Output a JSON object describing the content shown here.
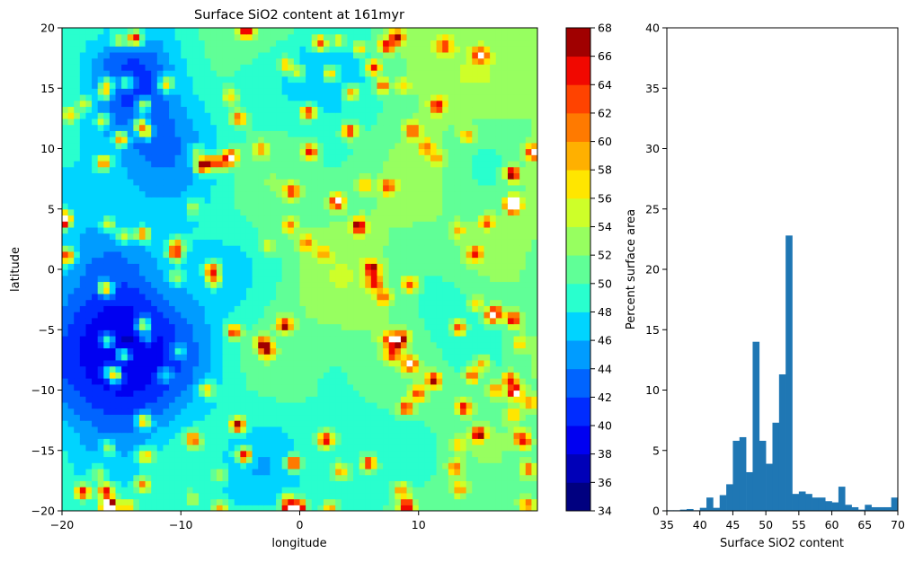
{
  "chart_data": [
    {
      "type": "heatmap",
      "title": "Surface SiO2 content at 161myr",
      "xlabel": "longitude",
      "ylabel": "latitude",
      "xlim": [
        -20,
        20
      ],
      "ylim": [
        -20,
        20
      ],
      "xticks": [
        -20,
        -10,
        0,
        10
      ],
      "xtick_labels": [
        "−20",
        "−10",
        "0",
        "10"
      ],
      "yticks": [
        -20,
        -15,
        -10,
        -5,
        0,
        5,
        10,
        15,
        20
      ],
      "ytick_labels": [
        "−20",
        "−15",
        "−10",
        "−5",
        "0",
        "5",
        "10",
        "15",
        "20"
      ],
      "colorbar": {
        "levels": [
          34,
          36,
          38,
          40,
          42,
          44,
          46,
          48,
          50,
          52,
          54,
          56,
          58,
          60,
          62,
          64,
          66,
          68
        ],
        "tick_labels": [
          "34",
          "36",
          "38",
          "40",
          "42",
          "44",
          "46",
          "48",
          "50",
          "52",
          "54",
          "56",
          "58",
          "60",
          "62",
          "64",
          "66",
          "68"
        ],
        "colors": [
          "#000080",
          "#0000b8",
          "#0000f1",
          "#002cff",
          "#0064ff",
          "#009cff",
          "#00d4ff",
          "#29ffce",
          "#60ff97",
          "#97ff60",
          "#ceff29",
          "#ffe600",
          "#ffb000",
          "#ff7a00",
          "#ff4300",
          "#f10800",
          "#a00000"
        ]
      }
    },
    {
      "type": "bar",
      "xlabel": "Surface SiO2 content",
      "ylabel": "Percent surface area",
      "xlim": [
        35,
        70
      ],
      "ylim": [
        0,
        40
      ],
      "bin_width": 1,
      "bin_starts": [
        35,
        36,
        37,
        38,
        39,
        40,
        41,
        42,
        43,
        44,
        45,
        46,
        47,
        48,
        49,
        50,
        51,
        52,
        53,
        54,
        55,
        56,
        57,
        58,
        59,
        60,
        61,
        62,
        63,
        64,
        65,
        66,
        67,
        68,
        69
      ],
      "values": [
        0.05,
        0.05,
        0.1,
        0.15,
        0.05,
        0.25,
        1.1,
        0.25,
        1.3,
        2.2,
        5.8,
        6.1,
        3.2,
        14.0,
        5.8,
        3.9,
        7.3,
        11.3,
        22.8,
        1.4,
        1.6,
        1.4,
        1.1,
        1.1,
        0.8,
        0.7,
        2.0,
        0.5,
        0.3,
        0.1,
        0.5,
        0.3,
        0.3,
        0.3,
        1.1
      ],
      "xticks": [
        35,
        40,
        45,
        50,
        55,
        60,
        65,
        70
      ],
      "xtick_labels": [
        "35",
        "40",
        "45",
        "50",
        "55",
        "60",
        "65",
        "70"
      ],
      "yticks": [
        0,
        5,
        10,
        15,
        20,
        25,
        30,
        35,
        40
      ],
      "ytick_labels": [
        "0",
        "5",
        "10",
        "15",
        "20",
        "25",
        "30",
        "35",
        "40"
      ],
      "color": "#1f77b4"
    }
  ]
}
